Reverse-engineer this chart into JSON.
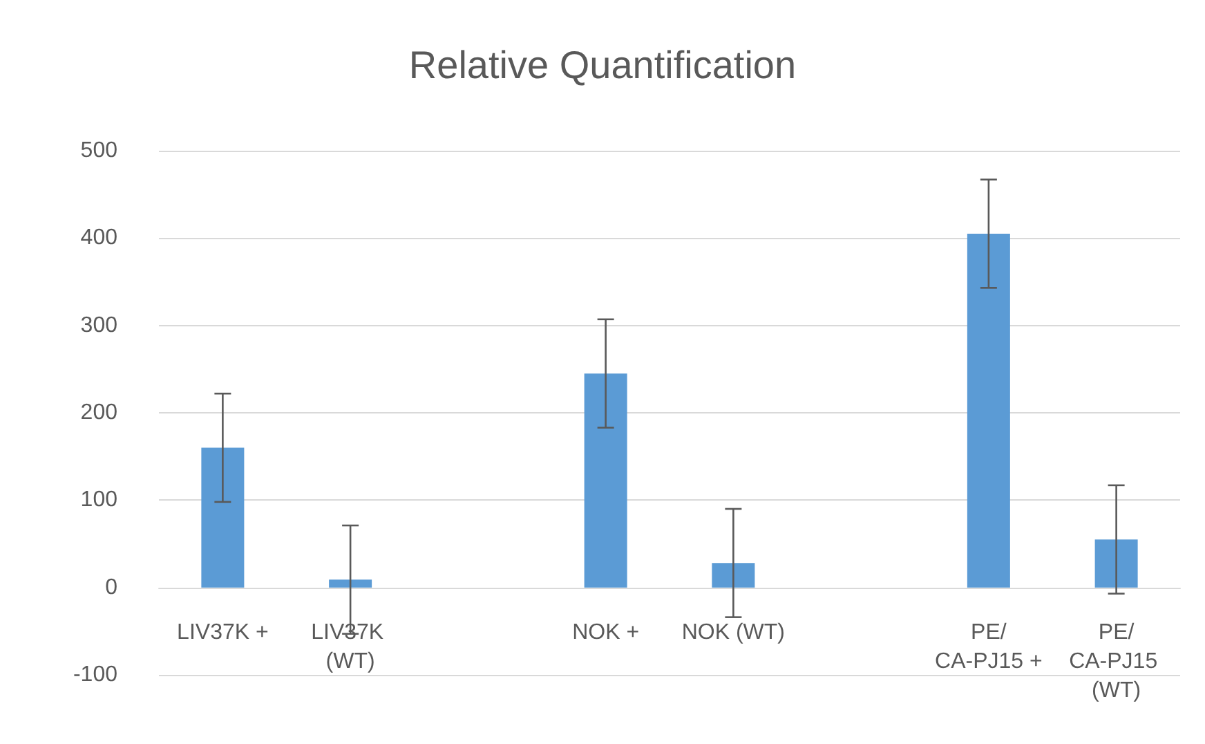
{
  "chart_data": {
    "type": "bar",
    "title": "Relative Quantification",
    "categories": [
      "LIV37K +",
      "LIV37K (WT)",
      null,
      "NOK +",
      "NOK (WT)",
      null,
      "PE/CA-PJ15 +",
      "PE/CA-PJ15 (WT)"
    ],
    "values": [
      160,
      9,
      null,
      245,
      28,
      null,
      405,
      55
    ],
    "errors": [
      62,
      62,
      null,
      62,
      62,
      null,
      62,
      62
    ],
    "color": "#5b9bd5",
    "ylim": [
      -100,
      500
    ],
    "yticks": [
      -100,
      0,
      100,
      200,
      300,
      400,
      500
    ],
    "grid": "y"
  }
}
